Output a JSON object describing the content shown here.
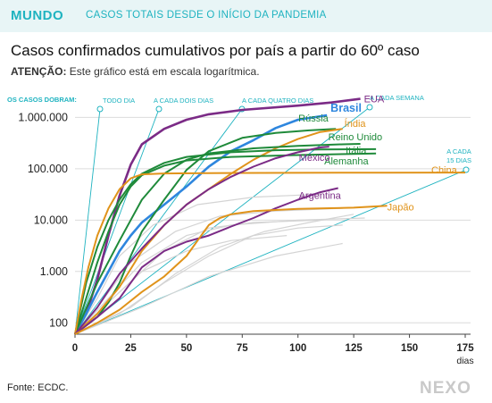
{
  "header": {
    "brand": "MUNDO",
    "subtitle": "CASOS TOTAIS DESDE O INÍCIO DA PANDEMIA"
  },
  "title": "Casos confirmados cumulativos por país a partir do 60º caso",
  "note": {
    "label": "ATENÇÃO:",
    "text": " Este gráfico está em escala logarítmica."
  },
  "source": "Fonte: ECDC.",
  "logo": "NEXO",
  "colors": {
    "accent": "#1fb3c0"
  },
  "chart_data": {
    "type": "line",
    "yscale": "log",
    "xlim": [
      0,
      175
    ],
    "ylim": [
      60,
      3000000
    ],
    "xticks": [
      0,
      25,
      50,
      75,
      100,
      125,
      150,
      175
    ],
    "xunit": "dias",
    "yticks": [
      {
        "v": 100,
        "label": "100"
      },
      {
        "v": 1000,
        "label": "1.000"
      },
      {
        "v": 10000,
        "label": "10.000"
      },
      {
        "v": 100000,
        "label": "100.000"
      },
      {
        "v": 1000000,
        "label": "1.000.000"
      }
    ],
    "doubling_header": "OS CASOS DOBRAM:",
    "doubling": [
      {
        "label": "TODO DIA",
        "period": 1
      },
      {
        "label": "A CADA DOIS DIAS",
        "period": 2
      },
      {
        "label": "A CADA QUATRO DIAS",
        "period": 4
      },
      {
        "label": "A CADA SEMANA",
        "period": 7
      },
      {
        "label": "A CADA 15 DIAS",
        "period": 15
      }
    ],
    "series": [
      {
        "name": "EUA",
        "color": "#7b2b86",
        "bold": true,
        "points": [
          [
            0,
            60
          ],
          [
            5,
            150
          ],
          [
            10,
            700
          ],
          [
            15,
            5000
          ],
          [
            20,
            30000
          ],
          [
            25,
            120000
          ],
          [
            30,
            300000
          ],
          [
            40,
            600000
          ],
          [
            50,
            900000
          ],
          [
            60,
            1150000
          ],
          [
            75,
            1400000
          ],
          [
            100,
            1700000
          ],
          [
            115,
            1950000
          ],
          [
            128,
            2300000
          ]
        ]
      },
      {
        "name": "Brasil",
        "color": "#2e86de",
        "bold": true,
        "points": [
          [
            0,
            60
          ],
          [
            5,
            150
          ],
          [
            10,
            400
          ],
          [
            15,
            1000
          ],
          [
            20,
            2500
          ],
          [
            25,
            5000
          ],
          [
            30,
            9000
          ],
          [
            40,
            20000
          ],
          [
            50,
            45000
          ],
          [
            60,
            110000
          ],
          [
            70,
            220000
          ],
          [
            80,
            360000
          ],
          [
            90,
            620000
          ],
          [
            100,
            900000
          ],
          [
            113,
            1100000
          ]
        ]
      },
      {
        "name": "Rússia",
        "color": "#1f8a3a",
        "points": [
          [
            0,
            60
          ],
          [
            10,
            130
          ],
          [
            15,
            250
          ],
          [
            20,
            600
          ],
          [
            25,
            2000
          ],
          [
            30,
            6000
          ],
          [
            40,
            25000
          ],
          [
            50,
            95000
          ],
          [
            60,
            220000
          ],
          [
            75,
            400000
          ],
          [
            90,
            500000
          ],
          [
            105,
            560000
          ],
          [
            117,
            600000
          ]
        ]
      },
      {
        "name": "Índia",
        "color": "#e0931a",
        "points": [
          [
            0,
            60
          ],
          [
            10,
            150
          ],
          [
            20,
            500
          ],
          [
            30,
            2500
          ],
          [
            40,
            8000
          ],
          [
            50,
            20000
          ],
          [
            60,
            40000
          ],
          [
            70,
            80000
          ],
          [
            80,
            150000
          ],
          [
            90,
            250000
          ],
          [
            100,
            380000
          ],
          [
            110,
            520000
          ],
          [
            120,
            600000
          ]
        ]
      },
      {
        "name": "Reino Unido",
        "color": "#1f8a3a",
        "points": [
          [
            0,
            60
          ],
          [
            10,
            600
          ],
          [
            20,
            4000
          ],
          [
            25,
            10000
          ],
          [
            30,
            25000
          ],
          [
            40,
            80000
          ],
          [
            50,
            150000
          ],
          [
            60,
            200000
          ],
          [
            80,
            250000
          ],
          [
            100,
            280000
          ],
          [
            120,
            300000
          ],
          [
            128,
            305000
          ]
        ]
      },
      {
        "name": "Itália",
        "color": "#1f8a3a",
        "points": [
          [
            0,
            60
          ],
          [
            5,
            600
          ],
          [
            10,
            3000
          ],
          [
            15,
            10000
          ],
          [
            20,
            25000
          ],
          [
            25,
            50000
          ],
          [
            30,
            80000
          ],
          [
            40,
            130000
          ],
          [
            50,
            170000
          ],
          [
            70,
            210000
          ],
          [
            90,
            230000
          ],
          [
            110,
            237000
          ],
          [
            135,
            241000
          ]
        ]
      },
      {
        "name": "Alemanha",
        "color": "#1f8a3a",
        "points": [
          [
            0,
            60
          ],
          [
            5,
            300
          ],
          [
            10,
            1500
          ],
          [
            15,
            6000
          ],
          [
            20,
            20000
          ],
          [
            25,
            45000
          ],
          [
            30,
            75000
          ],
          [
            40,
            115000
          ],
          [
            50,
            145000
          ],
          [
            70,
            170000
          ],
          [
            100,
            185000
          ],
          [
            125,
            195000
          ],
          [
            135,
            198000
          ]
        ]
      },
      {
        "name": "China",
        "color": "#e0931a",
        "points": [
          [
            0,
            60
          ],
          [
            3,
            300
          ],
          [
            6,
            1200
          ],
          [
            10,
            5000
          ],
          [
            15,
            17000
          ],
          [
            20,
            40000
          ],
          [
            25,
            65000
          ],
          [
            30,
            78000
          ],
          [
            40,
            81000
          ],
          [
            60,
            82500
          ],
          [
            100,
            83500
          ],
          [
            140,
            84000
          ],
          [
            175,
            84500
          ]
        ]
      },
      {
        "name": "México",
        "color": "#7b2b86",
        "points": [
          [
            0,
            60
          ],
          [
            10,
            200
          ],
          [
            20,
            900
          ],
          [
            30,
            2800
          ],
          [
            40,
            8000
          ],
          [
            50,
            20000
          ],
          [
            60,
            40000
          ],
          [
            70,
            70000
          ],
          [
            80,
            110000
          ],
          [
            90,
            160000
          ],
          [
            100,
            210000
          ],
          [
            110,
            260000
          ],
          [
            114,
            270000
          ]
        ]
      },
      {
        "name": "Argentina",
        "color": "#7b2b86",
        "points": [
          [
            0,
            60
          ],
          [
            10,
            130
          ],
          [
            20,
            300
          ],
          [
            30,
            1200
          ],
          [
            40,
            2500
          ],
          [
            50,
            3800
          ],
          [
            60,
            5000
          ],
          [
            70,
            7500
          ],
          [
            80,
            11000
          ],
          [
            90,
            17000
          ],
          [
            100,
            25000
          ],
          [
            110,
            35000
          ],
          [
            118,
            42000
          ]
        ]
      },
      {
        "name": "Japão",
        "color": "#e0931a",
        "points": [
          [
            0,
            60
          ],
          [
            10,
            100
          ],
          [
            20,
            180
          ],
          [
            30,
            400
          ],
          [
            40,
            800
          ],
          [
            50,
            2000
          ],
          [
            55,
            4000
          ],
          [
            60,
            8000
          ],
          [
            65,
            11000
          ],
          [
            70,
            13000
          ],
          [
            80,
            15000
          ],
          [
            100,
            16500
          ],
          [
            125,
            17500
          ],
          [
            140,
            19000
          ]
        ]
      }
    ],
    "background_series": [
      [
        [
          0,
          60
        ],
        [
          15,
          300
        ],
        [
          30,
          1500
        ],
        [
          50,
          5000
        ],
        [
          70,
          8000
        ],
        [
          100,
          10000
        ],
        [
          130,
          11000
        ]
      ],
      [
        [
          0,
          60
        ],
        [
          20,
          400
        ],
        [
          40,
          2500
        ],
        [
          60,
          7000
        ],
        [
          80,
          9000
        ],
        [
          110,
          10000
        ]
      ],
      [
        [
          0,
          60
        ],
        [
          10,
          200
        ],
        [
          25,
          1500
        ],
        [
          45,
          6000
        ],
        [
          65,
          12000
        ],
        [
          90,
          15000
        ],
        [
          120,
          17000
        ]
      ],
      [
        [
          0,
          60
        ],
        [
          20,
          150
        ],
        [
          40,
          600
        ],
        [
          60,
          2000
        ],
        [
          80,
          5000
        ],
        [
          100,
          7000
        ],
        [
          120,
          8000
        ]
      ],
      [
        [
          0,
          60
        ],
        [
          15,
          250
        ],
        [
          30,
          1000
        ],
        [
          50,
          2500
        ],
        [
          70,
          4000
        ],
        [
          95,
          5000
        ]
      ],
      [
        [
          0,
          60
        ],
        [
          25,
          200
        ],
        [
          45,
          900
        ],
        [
          65,
          3000
        ],
        [
          85,
          6000
        ],
        [
          105,
          9000
        ],
        [
          125,
          13000
        ]
      ],
      [
        [
          0,
          60
        ],
        [
          10,
          300
        ],
        [
          20,
          2000
        ],
        [
          35,
          8000
        ],
        [
          55,
          20000
        ],
        [
          80,
          28000
        ],
        [
          110,
          32000
        ]
      ],
      [
        [
          0,
          60
        ],
        [
          30,
          200
        ],
        [
          60,
          800
        ],
        [
          90,
          2000
        ],
        [
          120,
          3500
        ]
      ]
    ]
  }
}
